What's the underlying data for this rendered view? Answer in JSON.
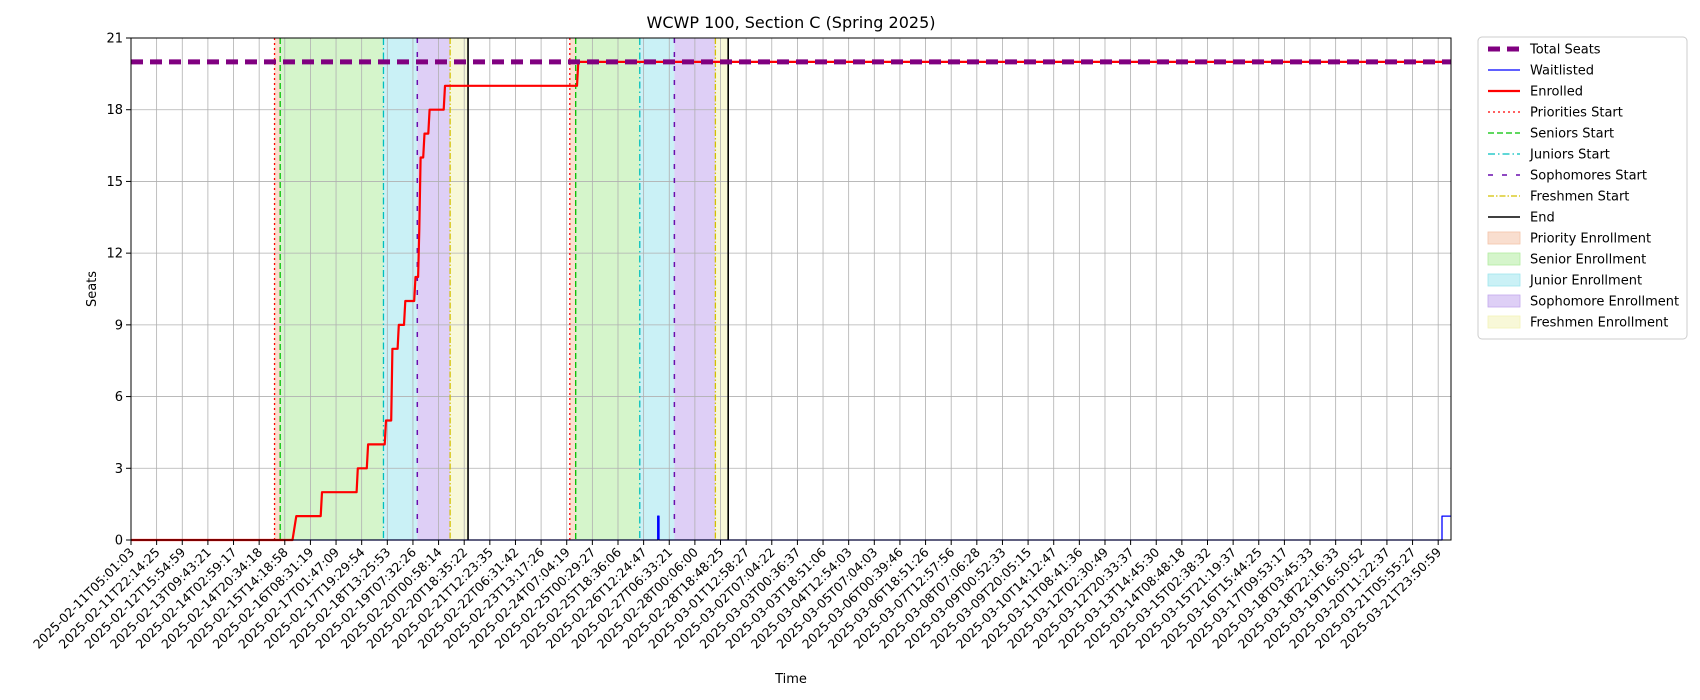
{
  "chart_data": {
    "type": "line",
    "title": "WCWP 100, Section C (Spring 2025)",
    "xlabel": "Time",
    "ylabel": "Seats",
    "ylim": [
      0,
      21
    ],
    "y_ticks": [
      0,
      3,
      6,
      9,
      12,
      15,
      18,
      21
    ],
    "grid": true,
    "legend_position": "outside-right",
    "x_tick_labels": [
      "2025-02-11T05:01:03",
      "2025-02-11T22:14:25",
      "2025-02-12T15:54:59",
      "2025-02-13T09:43:21",
      "2025-02-14T02:59:17",
      "2025-02-14T20:34:18",
      "2025-02-15T14:18:58",
      "2025-02-16T08:31:19",
      "2025-02-17T01:47:09",
      "2025-02-17T19:29:54",
      "2025-02-18T13:25:53",
      "2025-02-19T07:32:26",
      "2025-02-20T00:58:14",
      "2025-02-20T18:35:22",
      "2025-02-21T12:23:35",
      "2025-02-22T06:31:42",
      "2025-02-23T13:17:26",
      "2025-02-24T07:04:19",
      "2025-02-25T00:29:27",
      "2025-02-25T18:36:06",
      "2025-02-26T12:24:47",
      "2025-02-27T06:33:21",
      "2025-02-28T00:06:00",
      "2025-02-28T18:48:25",
      "2025-03-01T12:58:27",
      "2025-03-02T07:04:22",
      "2025-03-03T00:36:37",
      "2025-03-03T18:51:06",
      "2025-03-04T12:54:03",
      "2025-03-05T07:04:03",
      "2025-03-06T00:39:46",
      "2025-03-06T18:51:26",
      "2025-03-07T12:57:56",
      "2025-03-08T07:06:28",
      "2025-03-09T00:52:33",
      "2025-03-09T20:05:15",
      "2025-03-10T14:12:47",
      "2025-03-11T08:41:36",
      "2025-03-12T02:30:49",
      "2025-03-12T20:33:37",
      "2025-03-13T14:45:30",
      "2025-03-14T08:48:18",
      "2025-03-15T02:38:32",
      "2025-03-15T21:19:37",
      "2025-03-16T15:44:25",
      "2025-03-17T09:53:17",
      "2025-03-18T03:45:33",
      "2025-03-18T22:16:33",
      "2025-03-19T16:50:52",
      "2025-03-20T11:22:37",
      "2025-03-21T05:55:27",
      "2025-03-21T23:50:59"
    ],
    "x_range": [
      0,
      51.5
    ],
    "legend": [
      {
        "label": "Total Seats",
        "kind": "line",
        "color": "#800080",
        "width": 5,
        "dash": "12,7"
      },
      {
        "label": "Waitlisted",
        "kind": "line",
        "color": "#0000ff",
        "width": 1.3,
        "dash": ""
      },
      {
        "label": "Enrolled",
        "kind": "line",
        "color": "#ff0000",
        "width": 2.2,
        "dash": ""
      },
      {
        "label": "Priorities Start",
        "kind": "line",
        "color": "#ff0000",
        "width": 1.3,
        "dash": "2,3"
      },
      {
        "label": "Seniors Start",
        "kind": "line",
        "color": "#00c000",
        "width": 1.3,
        "dash": "6,3"
      },
      {
        "label": "Juniors Start",
        "kind": "line",
        "color": "#00bfbf",
        "width": 1.3,
        "dash": "7,3,1.5,3"
      },
      {
        "label": "Sophomores Start",
        "kind": "line",
        "color": "#6a0dad",
        "width": 1.5,
        "dash": "5,9"
      },
      {
        "label": "Freshmen Start",
        "kind": "line",
        "color": "#d4c000",
        "width": 1.3,
        "dash": "6,2,1.5,2"
      },
      {
        "label": "End",
        "kind": "line",
        "color": "#000000",
        "width": 1.6,
        "dash": ""
      },
      {
        "label": "Priority Enrollment",
        "kind": "patch",
        "color": "#f4c3a8"
      },
      {
        "label": "Senior Enrollment",
        "kind": "patch",
        "color": "#b2eca0"
      },
      {
        "label": "Junior Enrollment",
        "kind": "patch",
        "color": "#9fe6ee"
      },
      {
        "label": "Sophomore Enrollment",
        "kind": "patch",
        "color": "#c3a8ee"
      },
      {
        "label": "Freshmen Enrollment",
        "kind": "patch",
        "color": "#f3f3b8"
      }
    ],
    "phases": [
      {
        "priorities_start": 5.6,
        "seniors_start": 5.82,
        "juniors_start": 9.85,
        "sophomores_start": 11.17,
        "freshmen_start": 12.45,
        "end": 13.15,
        "bands": [
          {
            "from": 5.6,
            "to": 5.82,
            "color": "#f4c3a8"
          },
          {
            "from": 5.82,
            "to": 9.85,
            "color": "#b2eca0"
          },
          {
            "from": 9.85,
            "to": 11.17,
            "color": "#9fe6ee"
          },
          {
            "from": 11.17,
            "to": 12.45,
            "color": "#c3a8ee"
          },
          {
            "from": 12.45,
            "to": 13.15,
            "color": "#f3f3b8"
          }
        ]
      },
      {
        "priorities_start": 17.12,
        "seniors_start": 17.35,
        "juniors_start": 19.85,
        "sophomores_start": 21.2,
        "freshmen_start": 22.8,
        "end": 23.3,
        "bands": [
          {
            "from": 17.12,
            "to": 17.35,
            "color": "#f4c3a8"
          },
          {
            "from": 17.35,
            "to": 19.85,
            "color": "#b2eca0"
          },
          {
            "from": 19.85,
            "to": 21.2,
            "color": "#9fe6ee"
          },
          {
            "from": 21.2,
            "to": 22.8,
            "color": "#c3a8ee"
          },
          {
            "from": 22.8,
            "to": 23.3,
            "color": "#f3f3b8"
          }
        ]
      }
    ],
    "series": [
      {
        "name": "Total Seats",
        "color": "#800080",
        "points": [
          [
            0,
            20
          ],
          [
            51.5,
            20
          ]
        ]
      },
      {
        "name": "Waitlisted",
        "color": "#0000ff",
        "points": [
          [
            0,
            0
          ],
          [
            20.55,
            0
          ],
          [
            20.55,
            1
          ],
          [
            20.6,
            1
          ],
          [
            20.6,
            0
          ],
          [
            51.15,
            0
          ],
          [
            51.15,
            1
          ],
          [
            51.5,
            1
          ]
        ]
      },
      {
        "name": "Enrolled",
        "color": "#ff0000",
        "points": [
          [
            0,
            0
          ],
          [
            6.3,
            0
          ],
          [
            6.45,
            1
          ],
          [
            7.4,
            1
          ],
          [
            7.45,
            2
          ],
          [
            8.8,
            2
          ],
          [
            8.85,
            3
          ],
          [
            9.2,
            3
          ],
          [
            9.25,
            4
          ],
          [
            9.9,
            4
          ],
          [
            9.95,
            5
          ],
          [
            10.15,
            5
          ],
          [
            10.2,
            8
          ],
          [
            10.4,
            8
          ],
          [
            10.45,
            9
          ],
          [
            10.65,
            9
          ],
          [
            10.7,
            10
          ],
          [
            11.05,
            10
          ],
          [
            11.1,
            11
          ],
          [
            11.2,
            11
          ],
          [
            11.25,
            13
          ],
          [
            11.3,
            16
          ],
          [
            11.4,
            16
          ],
          [
            11.45,
            17
          ],
          [
            11.6,
            17
          ],
          [
            11.65,
            18
          ],
          [
            12.2,
            18
          ],
          [
            12.25,
            19
          ],
          [
            17.4,
            19
          ],
          [
            17.45,
            20
          ],
          [
            51.5,
            20
          ]
        ]
      }
    ]
  }
}
